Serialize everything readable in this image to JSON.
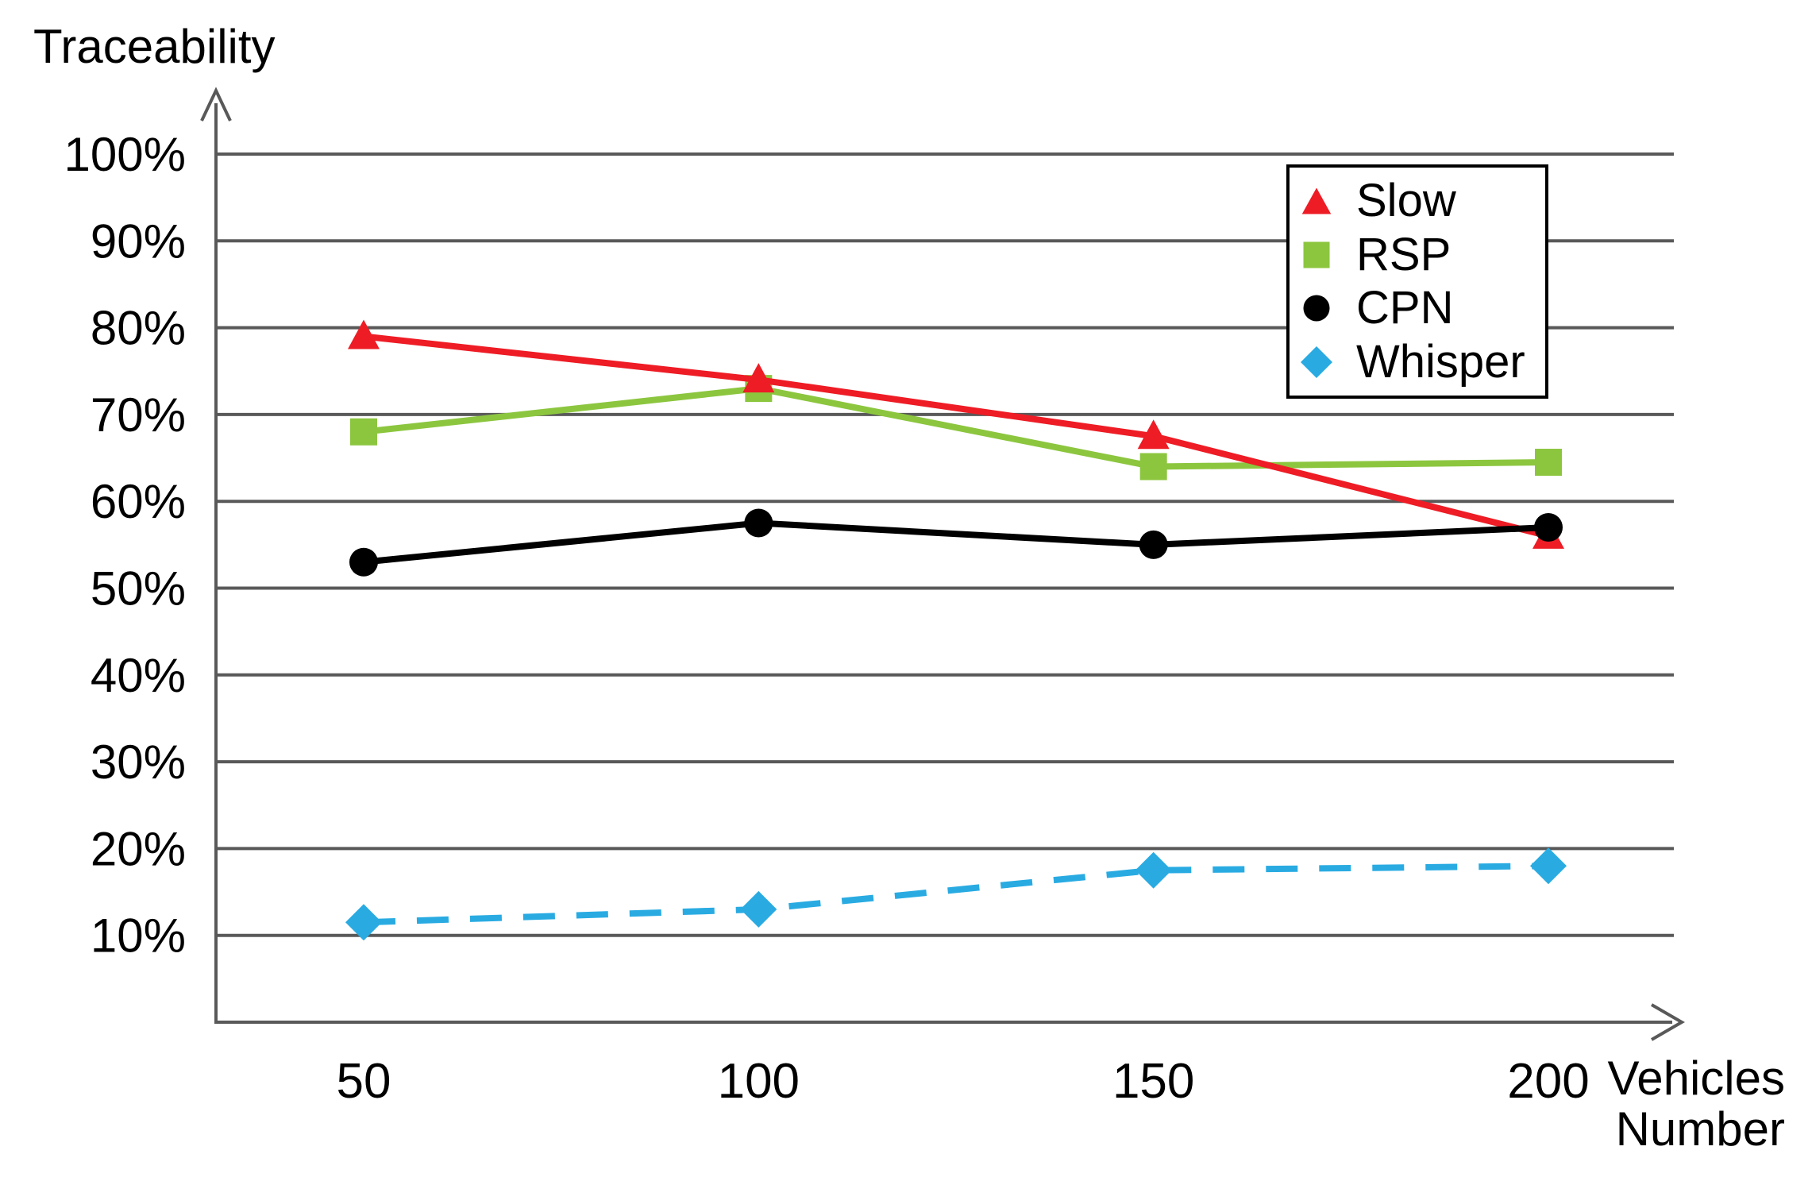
{
  "chart_data": {
    "type": "line",
    "title": "Traceability",
    "ylabel": "Traceability",
    "xlabel": "Vehicles Number",
    "xlabel_lines": {
      "line1": "Vehicles",
      "line2": "Number"
    },
    "x": [
      50,
      100,
      150,
      200
    ],
    "x_tick_labels": [
      "50",
      "100",
      "150",
      "200"
    ],
    "y_tick_labels": [
      "10%",
      "20%",
      "30%",
      "40%",
      "50%",
      "60%",
      "70%",
      "80%",
      "90%",
      "100%"
    ],
    "ylim": [
      0,
      100
    ],
    "grid": "horizontal",
    "legend_position": "top-right",
    "axis_color": "#595959",
    "grid_color": "#595959",
    "text_color": "#000000",
    "series": [
      {
        "name": "Slow",
        "color": "#EE1C25",
        "marker": "triangle",
        "line_style": "solid",
        "values": [
          79,
          74,
          67.5,
          56
        ]
      },
      {
        "name": "RSP",
        "color": "#8CC63F",
        "marker": "square",
        "line_style": "solid",
        "values": [
          68,
          73,
          64,
          64.5
        ]
      },
      {
        "name": "CPN",
        "color": "#000000",
        "marker": "circle",
        "line_style": "solid",
        "values": [
          53,
          57.5,
          55,
          57
        ]
      },
      {
        "name": "Whisper",
        "color": "#29ABE2",
        "marker": "diamond",
        "line_style": "dashed",
        "values": [
          11.5,
          13,
          17.5,
          18
        ]
      }
    ]
  }
}
